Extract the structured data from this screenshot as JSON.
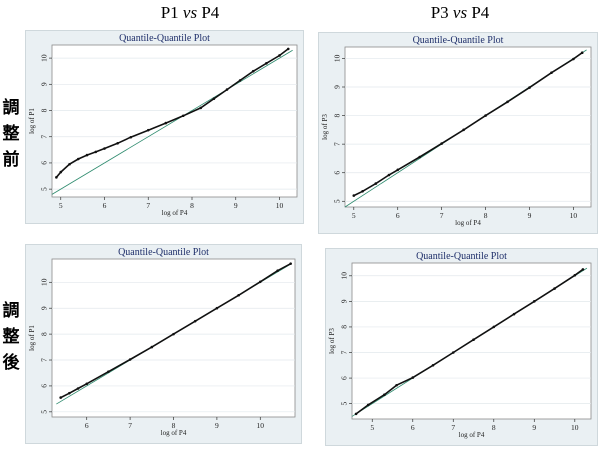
{
  "headers": {
    "col1": [
      "P1 ",
      "vs",
      " P4"
    ],
    "col2": [
      "P3 ",
      "vs",
      " P4"
    ],
    "row1": [
      "調",
      "整",
      "前"
    ],
    "row2": [
      "調",
      "整",
      "後"
    ]
  },
  "chart_data": [
    {
      "type": "scatter",
      "title": "Quantile-Quantile Plot",
      "xlabel": "log of P4",
      "ylabel": "log of P1",
      "xlim": [
        4.8,
        10.4
      ],
      "ylim": [
        4.7,
        10.5
      ],
      "xticks": [
        5,
        6,
        7,
        8,
        9,
        10
      ],
      "yticks": [
        5,
        6,
        7,
        8,
        9,
        10
      ],
      "reference_line": [
        [
          4.8,
          4.8
        ],
        [
          10.3,
          10.3
        ]
      ],
      "series": [
        {
          "name": "quantiles",
          "x": [
            4.9,
            5.0,
            5.2,
            5.4,
            5.6,
            5.8,
            6.0,
            6.3,
            6.6,
            7.0,
            7.4,
            7.8,
            8.2,
            8.5,
            8.8,
            9.1,
            9.4,
            9.7,
            10.0,
            10.2
          ],
          "y": [
            5.45,
            5.65,
            5.95,
            6.15,
            6.3,
            6.42,
            6.55,
            6.75,
            6.98,
            7.25,
            7.52,
            7.8,
            8.1,
            8.45,
            8.8,
            9.15,
            9.5,
            9.8,
            10.1,
            10.35
          ]
        }
      ]
    },
    {
      "type": "scatter",
      "title": "Quantile-Quantile Plot",
      "xlabel": "log of P4",
      "ylabel": "log of P3",
      "xlim": [
        4.8,
        10.4
      ],
      "ylim": [
        4.8,
        10.4
      ],
      "xticks": [
        5,
        6,
        7,
        8,
        9,
        10
      ],
      "yticks": [
        5,
        6,
        7,
        8,
        9,
        10
      ],
      "reference_line": [
        [
          4.8,
          4.8
        ],
        [
          10.3,
          10.3
        ]
      ],
      "series": [
        {
          "name": "quantiles",
          "x": [
            5.0,
            5.2,
            5.5,
            5.8,
            6.0,
            6.5,
            7.0,
            7.5,
            8.0,
            8.5,
            9.0,
            9.5,
            10.0,
            10.2
          ],
          "y": [
            5.2,
            5.35,
            5.62,
            5.92,
            6.1,
            6.55,
            7.02,
            7.5,
            8.0,
            8.48,
            8.98,
            9.5,
            9.98,
            10.2
          ]
        }
      ]
    },
    {
      "type": "scatter",
      "title": "Quantile-Quantile Plot",
      "xlabel": "log of P4",
      "ylabel": "log of P1",
      "xlim": [
        5.2,
        10.8
      ],
      "ylim": [
        4.8,
        10.9
      ],
      "xticks": [
        6,
        7,
        8,
        9,
        10
      ],
      "yticks": [
        5,
        6,
        7,
        8,
        9,
        10
      ],
      "reference_line": [
        [
          5.3,
          5.3
        ],
        [
          10.7,
          10.7
        ]
      ],
      "series": [
        {
          "name": "quantiles",
          "x": [
            5.4,
            5.6,
            5.8,
            6.0,
            6.5,
            7.0,
            7.5,
            8.0,
            8.5,
            9.0,
            9.5,
            10.0,
            10.4,
            10.7
          ],
          "y": [
            5.55,
            5.72,
            5.9,
            6.08,
            6.55,
            7.02,
            7.5,
            8.0,
            8.5,
            9.0,
            9.5,
            10.02,
            10.45,
            10.72
          ]
        }
      ]
    },
    {
      "type": "scatter",
      "title": "Quantile-Quantile Plot",
      "xlabel": "log of P4",
      "ylabel": "log of P3",
      "xlim": [
        4.5,
        10.4
      ],
      "ylim": [
        4.4,
        10.5
      ],
      "xticks": [
        5,
        6,
        7,
        8,
        9,
        10
      ],
      "yticks": [
        5,
        6,
        7,
        8,
        9,
        10
      ],
      "reference_line": [
        [
          4.5,
          4.5
        ],
        [
          10.3,
          10.3
        ]
      ],
      "series": [
        {
          "name": "quantiles",
          "x": [
            4.6,
            4.9,
            5.3,
            5.6,
            6.0,
            6.5,
            7.0,
            7.5,
            8.0,
            8.5,
            9.0,
            9.5,
            10.0,
            10.2
          ],
          "y": [
            4.6,
            4.95,
            5.35,
            5.72,
            6.02,
            6.5,
            7.0,
            7.5,
            8.0,
            8.5,
            9.0,
            9.5,
            10.02,
            10.25
          ]
        }
      ]
    }
  ]
}
